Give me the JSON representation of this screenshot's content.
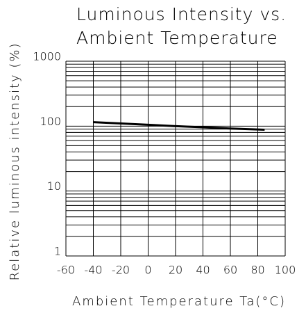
{
  "chart_data": {
    "type": "line",
    "title": [
      "Luminous Intensity vs.",
      "Ambient Temperature"
    ],
    "xlabel": "Ambient Temperature Ta(°C)",
    "ylabel": "Relative luminous intensity (%)",
    "x": [
      -40,
      -20,
      0,
      20,
      40,
      60,
      85
    ],
    "series": [
      {
        "name": "Relative luminous intensity",
        "color": "#000000",
        "values": [
          115,
          110,
          105,
          100,
          96,
          92,
          88
        ]
      }
    ],
    "xlim": [
      -60,
      100
    ],
    "xticks": [
      -60,
      -40,
      -20,
      0,
      20,
      40,
      60,
      80,
      100
    ],
    "ylim": [
      1,
      1000
    ],
    "yticks": [
      1,
      10,
      100,
      1000
    ],
    "y_minor_ticks": [
      2,
      3,
      4,
      5,
      6,
      7,
      8,
      9,
      20,
      30,
      40,
      50,
      60,
      70,
      80,
      90,
      200,
      300,
      400,
      500,
      600,
      700,
      800,
      900
    ],
    "yscale": "log",
    "grid": true
  }
}
